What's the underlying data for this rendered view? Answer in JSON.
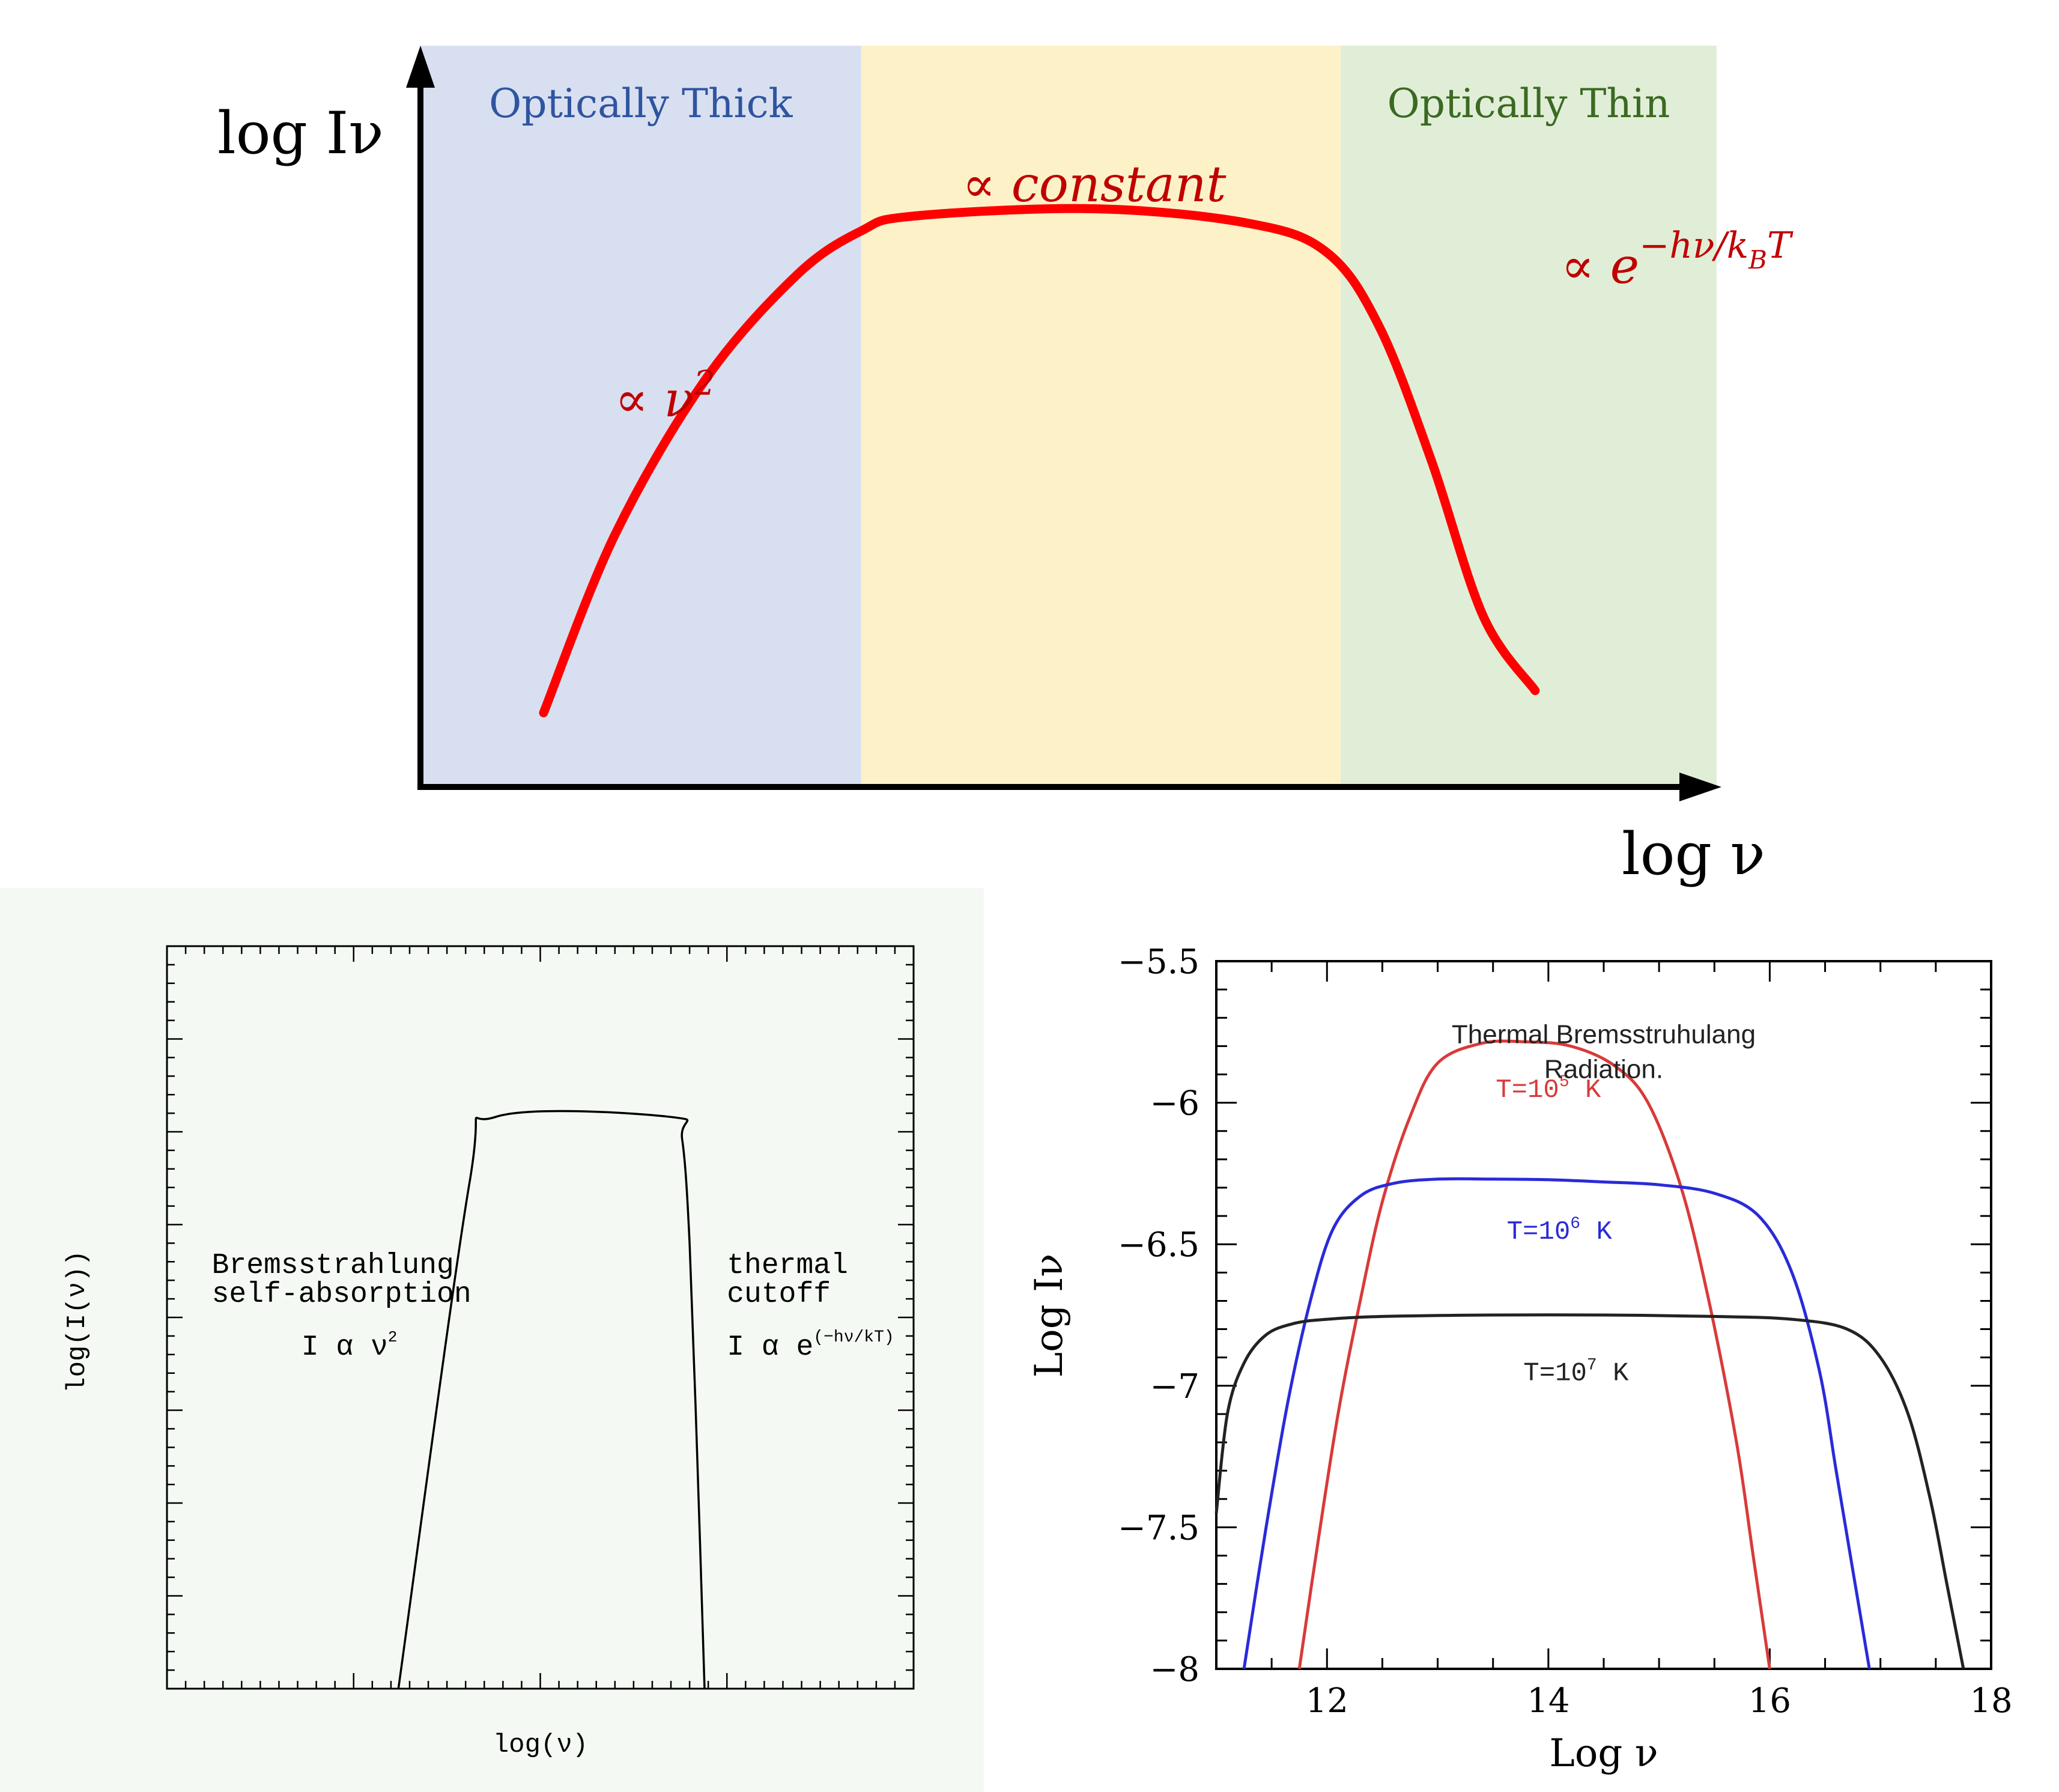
{
  "chart_data": [
    {
      "type": "line",
      "title": "",
      "xlabel": "log ν",
      "ylabel": "log Iν",
      "regions": [
        {
          "label": "Optically Thick",
          "x_range": [
            0,
            0.34
          ],
          "color": "#d8dff0",
          "text_color": "#2f55a0"
        },
        {
          "label": "",
          "x_range": [
            0.34,
            0.71
          ],
          "color": "#fdf1c8",
          "text_color": ""
        },
        {
          "label": "Optically Thin",
          "x_range": [
            0.71,
            1.0
          ],
          "color": "#e1eed7",
          "text_color": "#3b6a22"
        }
      ],
      "annotations": [
        {
          "text": "∝ constant",
          "x": 0.52,
          "y": 0.79
        },
        {
          "text_main": "∝ ν",
          "text_sup": "2",
          "x": 0.15,
          "y": 0.5
        },
        {
          "text_main": "∝ e",
          "text_sup": "−hν/k",
          "text_sub": "B",
          "text_sup2": "T",
          "x": 0.88,
          "y": 0.68
        }
      ],
      "series": [
        {
          "color": "#ff0000",
          "x": [
            0.095,
            0.15,
            0.22,
            0.29,
            0.34,
            0.38,
            0.52,
            0.64,
            0.7,
            0.74,
            0.78,
            0.82,
            0.86
          ],
          "y": [
            0.1,
            0.34,
            0.55,
            0.69,
            0.75,
            0.77,
            0.78,
            0.76,
            0.72,
            0.62,
            0.44,
            0.23,
            0.13
          ]
        }
      ],
      "xlim": [
        0,
        1
      ],
      "ylim": [
        0,
        1
      ],
      "grid": false,
      "axis_arrows": true
    },
    {
      "type": "line",
      "title": "",
      "xlabel": "log(ν)",
      "ylabel": "log(I(ν))",
      "annotations": [
        {
          "lines": [
            "Bremsstrahlung",
            "self-absorption"
          ],
          "x": 0.06,
          "y": 0.56
        },
        {
          "text_main": "I α ν",
          "text_sup": "2",
          "x": 0.18,
          "y": 0.45
        },
        {
          "lines": [
            "thermal",
            "cutoff"
          ],
          "x": 0.75,
          "y": 0.56
        },
        {
          "text_main": "I α e",
          "text_sup": "(−hν/kT)",
          "x": 0.75,
          "y": 0.45
        }
      ],
      "series": [
        {
          "color": "#000000",
          "x": [
            0.31,
            0.405,
            0.44,
            0.675,
            0.69,
            0.7,
            0.71,
            0.72
          ],
          "y": [
            0.0,
            0.68,
            0.77,
            0.77,
            0.74,
            0.6,
            0.32,
            0.0
          ]
        }
      ],
      "xlim": [
        0,
        1
      ],
      "ylim": [
        0,
        1
      ],
      "grid": false
    },
    {
      "type": "line",
      "title": "Thermal Bremsstruhulang Radiation.",
      "xlabel": "Log ν",
      "ylabel": "Log Iν",
      "x_ticks": [
        12,
        14,
        16,
        18
      ],
      "y_ticks": [
        -8,
        -7.5,
        -7,
        -6.5,
        -6,
        -5.5
      ],
      "y_tick_labels": [
        "−8",
        "−7.5",
        "−7",
        "−6.5",
        "−6",
        "−5.5"
      ],
      "xlim": [
        11,
        18
      ],
      "ylim": [
        -8,
        -5.5
      ],
      "grid": false,
      "series": [
        {
          "label_main": "T=10",
          "label_sup": "5",
          "label_unit": "K",
          "color": "#d93a3a",
          "label_x": 14,
          "label_y": -5.98,
          "x": [
            11.75,
            11.9,
            12.1,
            12.3,
            12.5,
            12.75,
            13.0,
            13.4,
            13.8,
            14.2,
            14.6,
            14.9,
            15.2,
            15.45,
            15.7,
            15.85,
            16.0
          ],
          "y": [
            -8.0,
            -7.6,
            -7.1,
            -6.7,
            -6.35,
            -6.05,
            -5.86,
            -5.79,
            -5.785,
            -5.8,
            -5.87,
            -6.0,
            -6.3,
            -6.7,
            -7.2,
            -7.6,
            -8.0
          ]
        },
        {
          "label_main": "T=10",
          "label_sup": "6",
          "label_unit": "K",
          "color": "#2a2ad9",
          "label_x": 14.1,
          "label_y": -6.48,
          "x": [
            11.25,
            11.45,
            11.65,
            11.85,
            12.05,
            12.3,
            12.6,
            13.0,
            13.5,
            14.0,
            14.5,
            15.0,
            15.5,
            15.9,
            16.2,
            16.45,
            16.6,
            16.75,
            16.9
          ],
          "y": [
            -8.0,
            -7.5,
            -7.05,
            -6.7,
            -6.45,
            -6.33,
            -6.285,
            -6.27,
            -6.27,
            -6.272,
            -6.28,
            -6.29,
            -6.32,
            -6.4,
            -6.6,
            -6.95,
            -7.3,
            -7.65,
            -8.0
          ]
        },
        {
          "label_main": "T=10",
          "label_sup": "7",
          "label_unit": "K",
          "color": "#222222",
          "label_x": 14.25,
          "label_y": -6.98,
          "x": [
            11.0,
            11.1,
            11.25,
            11.45,
            11.7,
            12.0,
            12.5,
            13.5,
            14.5,
            15.5,
            16.2,
            16.7,
            17.0,
            17.25,
            17.45,
            17.6,
            17.75
          ],
          "y": [
            -7.45,
            -7.1,
            -6.92,
            -6.82,
            -6.78,
            -6.765,
            -6.755,
            -6.75,
            -6.75,
            -6.755,
            -6.765,
            -6.8,
            -6.9,
            -7.1,
            -7.4,
            -7.7,
            -8.0
          ]
        }
      ]
    }
  ]
}
